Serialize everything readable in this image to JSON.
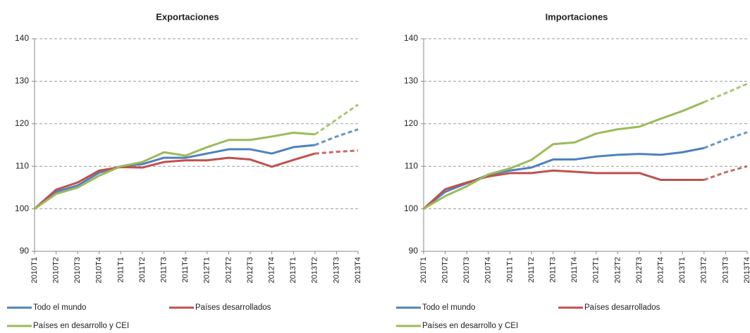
{
  "chart_data": [
    {
      "type": "line",
      "title": "Exportaciones",
      "categories": [
        "2010T1",
        "2010T2",
        "2010T3",
        "2010T4",
        "2011T1",
        "2011T2",
        "2011T3",
        "2011T4",
        "2012T1",
        "2012T2",
        "2012T3",
        "2012T4",
        "2013T1",
        "2013T2",
        "2013T3",
        "2013T4"
      ],
      "projection_from": "2013T2",
      "ylim": [
        90,
        140
      ],
      "yticks": [
        90,
        100,
        110,
        120,
        130,
        140
      ],
      "grid": true,
      "legend": "bottom",
      "series": [
        {
          "name": "Todo el mundo",
          "color": "#4f81bd",
          "values": [
            100,
            104,
            105.5,
            108.5,
            110,
            110.5,
            112,
            112,
            113,
            114,
            114,
            113,
            114.5,
            115,
            117,
            118.7
          ]
        },
        {
          "name": "Países desarrollados",
          "color": "#c0504d",
          "values": [
            100,
            104.5,
            106.2,
            109,
            109.8,
            109.7,
            111,
            111.4,
            111.4,
            112,
            111.6,
            109.9,
            111.5,
            113,
            113.4,
            113.7
          ]
        },
        {
          "name": "Países en desarrollo y CEI",
          "color": "#9bbb59",
          "values": [
            100,
            103.5,
            105,
            107.8,
            110,
            111,
            113.3,
            112.5,
            114.5,
            116.2,
            116.2,
            117,
            117.9,
            117.5,
            121,
            124.5
          ]
        }
      ]
    },
    {
      "type": "line",
      "title": "Importaciones",
      "categories": [
        "2010T1",
        "2010T2",
        "2010T3",
        "2010T4",
        "2011T1",
        "2011T2",
        "2011T3",
        "2011T4",
        "2012T1",
        "2012T2",
        "2012T3",
        "2012T4",
        "2013T1",
        "2013T2",
        "2013T3",
        "2013T4"
      ],
      "projection_from": "2013T2",
      "ylim": [
        90,
        140
      ],
      "yticks": [
        90,
        100,
        110,
        120,
        130,
        140
      ],
      "grid": true,
      "legend": "bottom",
      "series": [
        {
          "name": "Todo el mundo",
          "color": "#4f81bd",
          "values": [
            100,
            104,
            106,
            108,
            109,
            109.7,
            111.6,
            111.6,
            112.3,
            112.7,
            112.9,
            112.7,
            113.3,
            114.3,
            116.3,
            118
          ]
        },
        {
          "name": "Países desarrollados",
          "color": "#c0504d",
          "values": [
            100,
            104.6,
            106.2,
            107.6,
            108.4,
            108.4,
            109,
            108.7,
            108.4,
            108.4,
            108.4,
            106.8,
            106.8,
            106.8,
            108.6,
            110
          ]
        },
        {
          "name": "Países en desarrollo y CEI",
          "color": "#9bbb59",
          "values": [
            100,
            103,
            105.3,
            108.1,
            109.5,
            111.5,
            115.2,
            115.6,
            117.7,
            118.7,
            119.3,
            121.2,
            123,
            125.1,
            127.2,
            129.4
          ]
        }
      ]
    }
  ]
}
